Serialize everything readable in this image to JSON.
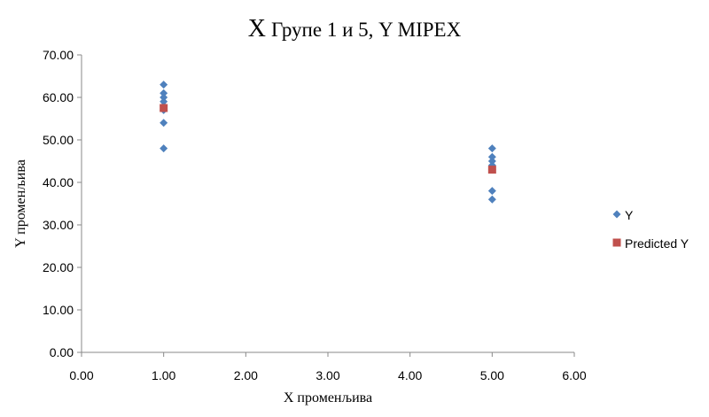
{
  "chart_data": {
    "type": "scatter",
    "title_prefix": "X",
    "title_rest": "Групе 1 и 5, Y MIPEX",
    "xlabel": "X променљива",
    "ylabel": "Y променљива",
    "xlim": [
      0,
      6
    ],
    "ylim": [
      0,
      70
    ],
    "x_ticks": [
      0,
      1,
      2,
      3,
      4,
      5,
      6
    ],
    "y_ticks": [
      0,
      10,
      20,
      30,
      40,
      50,
      60,
      70
    ],
    "x_tick_labels": [
      "0.00",
      "1.00",
      "2.00",
      "3.00",
      "4.00",
      "5.00",
      "6.00"
    ],
    "y_tick_labels": [
      "0.00",
      "10.00",
      "20.00",
      "30.00",
      "40.00",
      "50.00",
      "60.00",
      "70.00"
    ],
    "grid": false,
    "legend_position": "right",
    "series": [
      {
        "name": "Y",
        "marker": "diamond",
        "color": "#4F81BD",
        "points": [
          {
            "x": 1,
            "y": 63
          },
          {
            "x": 1,
            "y": 61
          },
          {
            "x": 1,
            "y": 60
          },
          {
            "x": 1,
            "y": 59
          },
          {
            "x": 1,
            "y": 58
          },
          {
            "x": 1,
            "y": 57
          },
          {
            "x": 1,
            "y": 54
          },
          {
            "x": 1,
            "y": 48
          },
          {
            "x": 5,
            "y": 48
          },
          {
            "x": 5,
            "y": 46
          },
          {
            "x": 5,
            "y": 45
          },
          {
            "x": 5,
            "y": 44
          },
          {
            "x": 5,
            "y": 43
          },
          {
            "x": 5,
            "y": 38
          },
          {
            "x": 5,
            "y": 36
          }
        ]
      },
      {
        "name": "Predicted Y",
        "marker": "square",
        "color": "#C0504D",
        "points": [
          {
            "x": 1,
            "y": 57.5
          },
          {
            "x": 5,
            "y": 43
          }
        ]
      }
    ]
  }
}
